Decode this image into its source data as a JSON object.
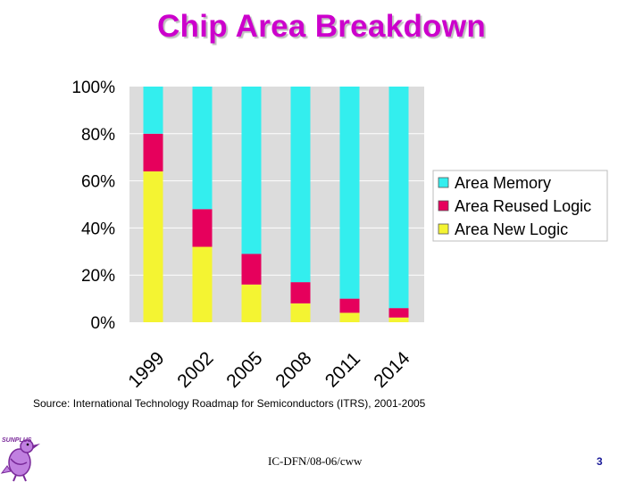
{
  "slide": {
    "title": "Chip Area Breakdown",
    "source": "Source: International Technology Roadmap for Semiconductors (ITRS), 2001-2005",
    "footer": "IC-DFN/08-06/cww",
    "page_number": "3"
  },
  "colors": {
    "title": "#cc00cc",
    "memory": "#33eeee",
    "reused_logic": "#e6005c",
    "new_logic": "#f4f432",
    "plot_background": "#dcdcdc",
    "gridline": "#ffffff",
    "page_number": "#1a1a99",
    "logo_bird": "#a050c0"
  },
  "chart_data": {
    "type": "bar",
    "stacked": true,
    "categories": [
      "1999",
      "2002",
      "2005",
      "2008",
      "2011",
      "2014"
    ],
    "series": [
      {
        "name": "Area Memory",
        "values": [
          20,
          52,
          71,
          83,
          90,
          94
        ]
      },
      {
        "name": "Area Reused Logic",
        "values": [
          16,
          16,
          13,
          9,
          6,
          4
        ]
      },
      {
        "name": "Area New Logic",
        "values": [
          64,
          32,
          16,
          8,
          4,
          2
        ]
      }
    ],
    "yticks": [
      "0%",
      "20%",
      "40%",
      "60%",
      "80%",
      "100%"
    ],
    "ylim": [
      0,
      100
    ],
    "grid": true,
    "legend_position": "right",
    "xlabel": "",
    "ylabel": "",
    "title": ""
  },
  "logo": {
    "text": "SUNPLUS",
    "icon": "bird-logo-icon"
  }
}
